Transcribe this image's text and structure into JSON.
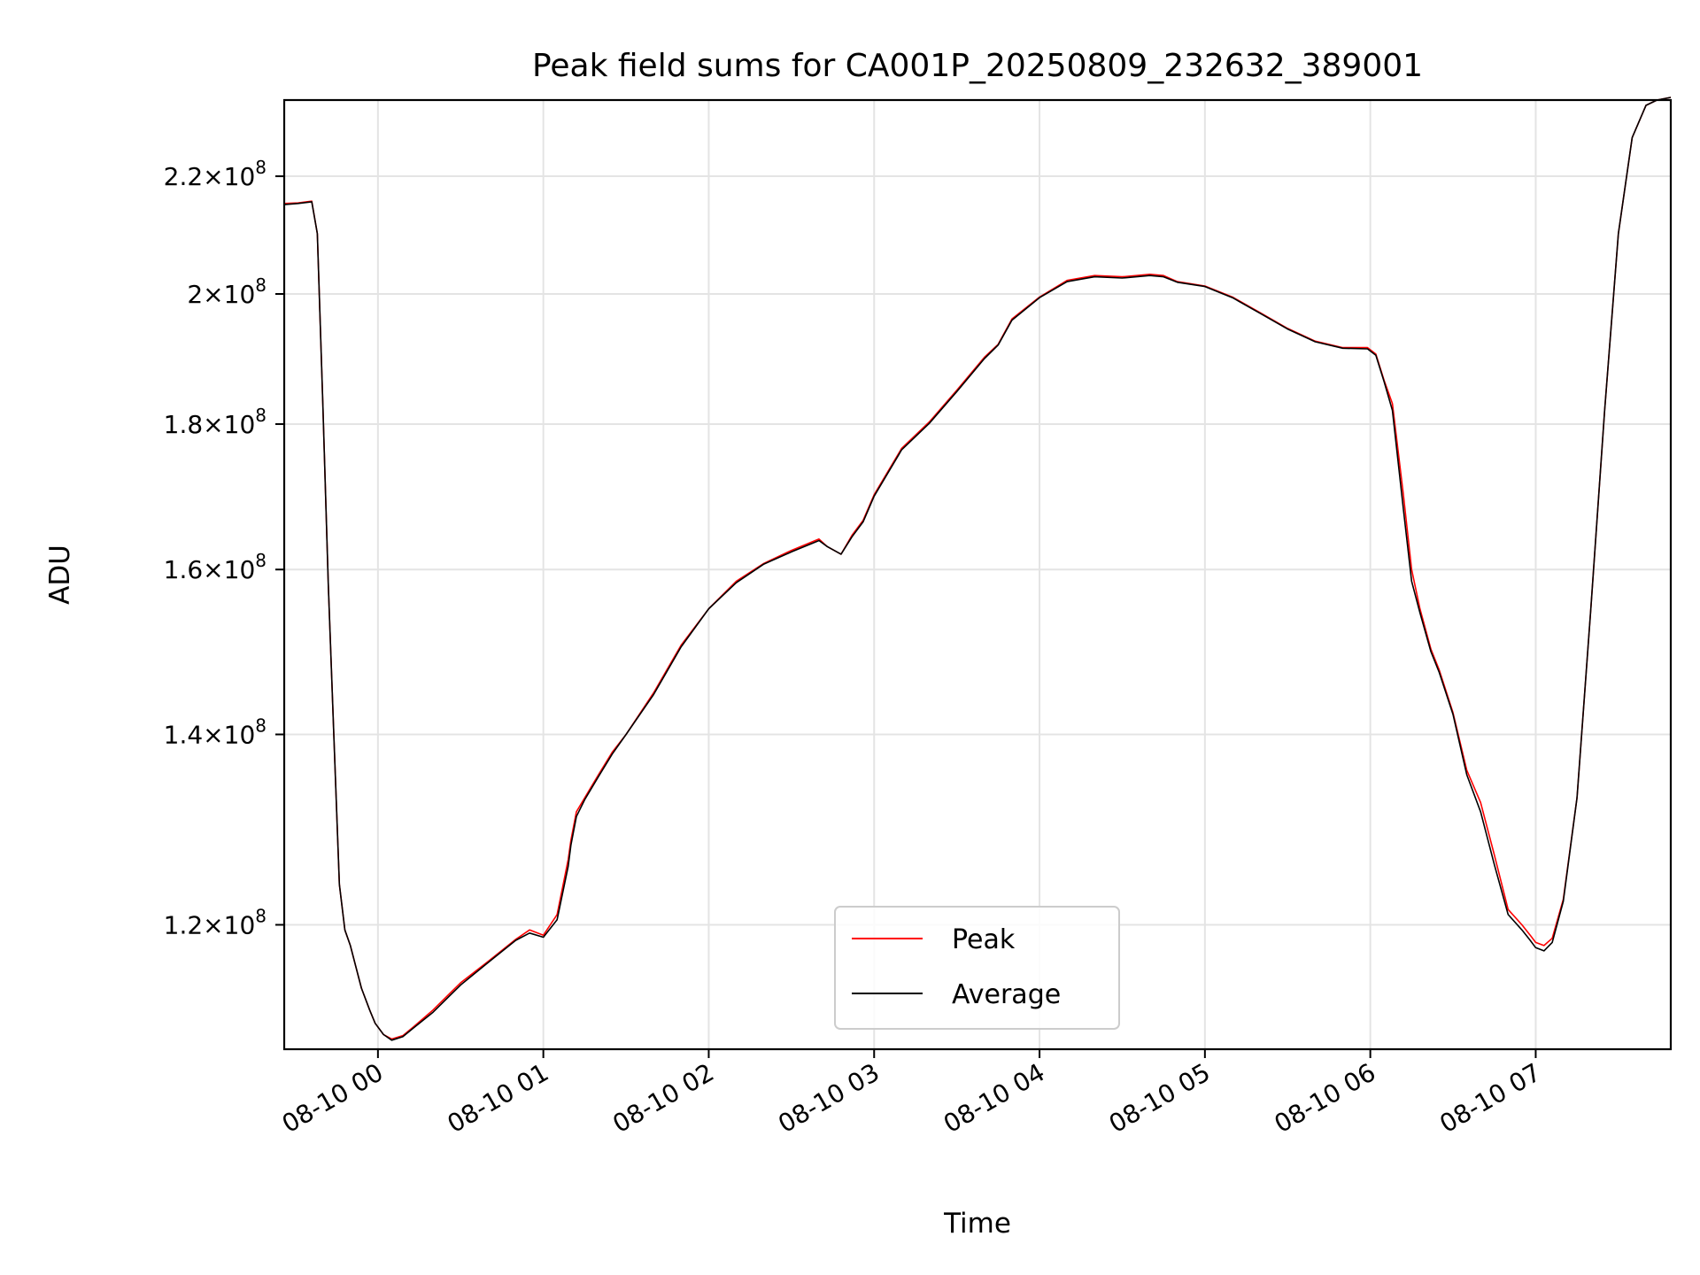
{
  "chart_data": {
    "type": "line",
    "title": "Peak field sums for CA001P_20250809_232632_389001",
    "xlabel": "Time",
    "ylabel": "ADU",
    "x_unit": "time (08-10 hour)",
    "xlim": [
      "23:26",
      "07:49"
    ],
    "ylim": [
      108500000,
      234000000
    ],
    "y_scale": "log",
    "grid": true,
    "legend_position": "bottom-center",
    "x_ticks": [
      {
        "value": "00:00",
        "label": "08-10 00"
      },
      {
        "value": "01:00",
        "label": "08-10 01"
      },
      {
        "value": "02:00",
        "label": "08-10 02"
      },
      {
        "value": "03:00",
        "label": "08-10 03"
      },
      {
        "value": "04:00",
        "label": "08-10 04"
      },
      {
        "value": "05:00",
        "label": "08-10 05"
      },
      {
        "value": "06:00",
        "label": "08-10 06"
      },
      {
        "value": "07:00",
        "label": "08-10 07"
      }
    ],
    "y_ticks": [
      {
        "value": 120000000,
        "mantissa": "1.2",
        "base": "10",
        "exp": "8"
      },
      {
        "value": 140000000,
        "mantissa": "1.4",
        "base": "10",
        "exp": "8"
      },
      {
        "value": 160000000,
        "mantissa": "1.6",
        "base": "10",
        "exp": "8"
      },
      {
        "value": 180000000,
        "mantissa": "1.8",
        "base": "10",
        "exp": "8"
      },
      {
        "value": 200000000,
        "mantissa": "2",
        "base": "10",
        "exp": "8"
      },
      {
        "value": 220000000,
        "mantissa": "2.2",
        "base": "10",
        "exp": "8"
      }
    ],
    "x": [
      "23:26",
      "23:31",
      "23:36",
      "23:38",
      "23:40",
      "23:42",
      "23:44",
      "23:46",
      "23:48",
      "23:50",
      "23:52",
      "23:54",
      "23:57",
      "23:59",
      "00:02",
      "00:05",
      "00:09",
      "00:13",
      "00:20",
      "00:30",
      "00:40",
      "00:50",
      "00:55",
      "01:00",
      "01:05",
      "01:09",
      "01:10",
      "01:12",
      "01:15",
      "01:20",
      "01:25",
      "01:30",
      "01:40",
      "01:50",
      "02:00",
      "02:10",
      "02:20",
      "02:30",
      "02:40",
      "02:43",
      "02:48",
      "02:52",
      "02:56",
      "03:00",
      "03:10",
      "03:20",
      "03:30",
      "03:40",
      "03:45",
      "03:50",
      "04:00",
      "04:10",
      "04:20",
      "04:30",
      "04:40",
      "04:45",
      "04:50",
      "05:00",
      "05:10",
      "05:20",
      "05:30",
      "05:40",
      "05:50",
      "05:59",
      "06:02",
      "06:05",
      "06:08",
      "06:12",
      "06:15",
      "06:18",
      "06:22",
      "06:25",
      "06:30",
      "06:35",
      "06:40",
      "06:45",
      "06:50",
      "06:55",
      "06:58",
      "07:00",
      "07:03",
      "07:06",
      "07:10",
      "07:15",
      "07:20",
      "07:25",
      "07:30",
      "07:35",
      "07:40",
      "07:44",
      "07:49"
    ],
    "series": [
      {
        "name": "Peak",
        "color": "#ff0000",
        "stroke_width": 1.6,
        "values": [
          215200000,
          215300000,
          215600000,
          210000000,
          183000000,
          158000000,
          140000000,
          124000000,
          119500000,
          118000000,
          116000000,
          114000000,
          112000000,
          110800000,
          109800000,
          109400000,
          109700000,
          110500000,
          112000000,
          114500000,
          116500000,
          118600000,
          119500000,
          119000000,
          121000000,
          126500000,
          128500000,
          131500000,
          133000000,
          135500000,
          138000000,
          140000000,
          144800000,
          150500000,
          155000000,
          158500000,
          160800000,
          162500000,
          164000000,
          163000000,
          162000000,
          164500000,
          166500000,
          170000000,
          176500000,
          180300000,
          185000000,
          190000000,
          192000000,
          196000000,
          199500000,
          202200000,
          203000000,
          202800000,
          203200000,
          203000000,
          202000000,
          201300000,
          199500000,
          197000000,
          194500000,
          192500000,
          191500000,
          191500000,
          190500000,
          186500000,
          183000000,
          170000000,
          160000000,
          155000000,
          150000000,
          147500000,
          142500000,
          136000000,
          132500000,
          127000000,
          121500000,
          120000000,
          119000000,
          118300000,
          118000000,
          118700000,
          122500000,
          133000000,
          155000000,
          182000000,
          210000000,
          227000000,
          233000000,
          234000000,
          234500000
        ]
      },
      {
        "name": "Average",
        "color": "#000000",
        "stroke_width": 1.6,
        "values": [
          215000000,
          215200000,
          215500000,
          210000000,
          183000000,
          158000000,
          140000000,
          124000000,
          119500000,
          118000000,
          116000000,
          114000000,
          112000000,
          110800000,
          109800000,
          109300000,
          109600000,
          110400000,
          111800000,
          114300000,
          116400000,
          118500000,
          119200000,
          118800000,
          120500000,
          125800000,
          128000000,
          131000000,
          132800000,
          135300000,
          137800000,
          140000000,
          144600000,
          150300000,
          155000000,
          158300000,
          160700000,
          162300000,
          163800000,
          163000000,
          162000000,
          164300000,
          166300000,
          169800000,
          176300000,
          180100000,
          184800000,
          189800000,
          191900000,
          195800000,
          199400000,
          202000000,
          202800000,
          202600000,
          203000000,
          202800000,
          201900000,
          201200000,
          199400000,
          196900000,
          194400000,
          192400000,
          191400000,
          191300000,
          190300000,
          186300000,
          182000000,
          168000000,
          158500000,
          154500000,
          149700000,
          147200000,
          142300000,
          135500000,
          131500000,
          126000000,
          121000000,
          119500000,
          118500000,
          117800000,
          117500000,
          118300000,
          122300000,
          133000000,
          155000000,
          182000000,
          210000000,
          227000000,
          233000000,
          234000000,
          234500000
        ]
      }
    ]
  }
}
